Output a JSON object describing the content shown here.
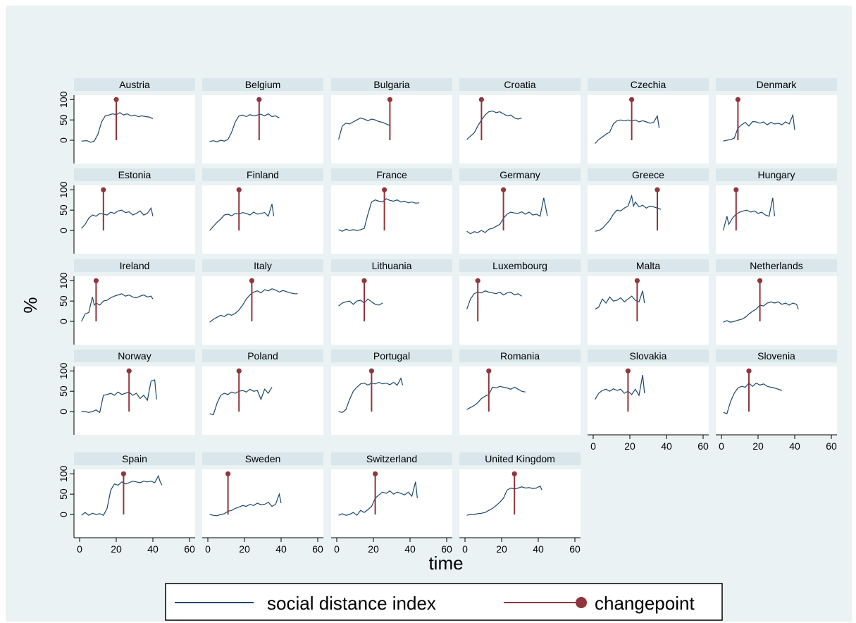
{
  "chart_data": {
    "type": "line",
    "ylabel": "%",
    "xlabel": "time",
    "xlim": [
      0,
      60
    ],
    "ylim": [
      0,
      100
    ],
    "xticks": [
      "0",
      "20",
      "40",
      "60"
    ],
    "yticks": [
      "0",
      "50",
      "100"
    ],
    "grid": false,
    "legend": {
      "position": "bottom",
      "items": [
        {
          "label": "social distance index",
          "color": "#1a476f",
          "marker": "line"
        },
        {
          "label": "changepoint",
          "color": "#90353b",
          "marker": "line-dot"
        }
      ]
    },
    "panels": [
      {
        "name": "Austria",
        "changepoint": 20,
        "x": [
          1,
          4,
          6,
          8,
          10,
          12,
          14,
          16,
          18,
          20,
          22,
          24,
          26,
          28,
          30,
          32,
          34,
          36,
          38,
          40
        ],
        "y": [
          -2,
          -1,
          -5,
          -2,
          15,
          45,
          60,
          62,
          65,
          63,
          68,
          62,
          65,
          60,
          62,
          58,
          60,
          58,
          57,
          53
        ]
      },
      {
        "name": "Belgium",
        "changepoint": 28,
        "x": [
          1,
          3,
          5,
          7,
          9,
          11,
          13,
          15,
          17,
          19,
          21,
          23,
          25,
          27,
          29,
          31,
          33,
          35,
          37,
          39
        ],
        "y": [
          -3,
          -1,
          -4,
          0,
          -2,
          2,
          20,
          45,
          60,
          62,
          58,
          63,
          60,
          62,
          64,
          60,
          65,
          58,
          60,
          55
        ]
      },
      {
        "name": "Bulgaria",
        "changepoint": 29,
        "x": [
          1,
          3,
          5,
          7,
          9,
          11,
          13,
          15,
          17,
          19,
          21,
          23,
          25,
          27,
          29
        ],
        "y": [
          2,
          35,
          42,
          40,
          45,
          50,
          55,
          52,
          48,
          52,
          50,
          46,
          44,
          40,
          36
        ]
      },
      {
        "name": "Croatia",
        "changepoint": 9,
        "x": [
          1,
          3,
          5,
          7,
          9,
          11,
          13,
          15,
          17,
          19,
          21,
          23,
          25,
          27,
          29,
          31
        ],
        "y": [
          2,
          10,
          18,
          35,
          50,
          62,
          70,
          72,
          68,
          70,
          65,
          60,
          62,
          55,
          52,
          55
        ]
      },
      {
        "name": "Czechia",
        "changepoint": 21,
        "x": [
          1,
          3,
          5,
          7,
          9,
          11,
          13,
          15,
          17,
          19,
          21,
          23,
          25,
          27,
          29,
          31,
          33,
          35,
          36
        ],
        "y": [
          -8,
          2,
          8,
          15,
          20,
          40,
          48,
          50,
          48,
          50,
          47,
          50,
          45,
          48,
          45,
          42,
          44,
          60,
          30
        ]
      },
      {
        "name": "Denmark",
        "changepoint": 9,
        "x": [
          1,
          3,
          5,
          7,
          9,
          11,
          13,
          15,
          17,
          19,
          21,
          23,
          25,
          27,
          29,
          31,
          33,
          35,
          37,
          39,
          40
        ],
        "y": [
          -2,
          0,
          2,
          5,
          30,
          38,
          44,
          35,
          46,
          45,
          42,
          45,
          38,
          44,
          40,
          42,
          38,
          45,
          40,
          62,
          25
        ]
      },
      {
        "name": "Estonia",
        "changepoint": 13,
        "x": [
          1,
          3,
          5,
          7,
          9,
          11,
          13,
          15,
          17,
          19,
          21,
          23,
          25,
          27,
          29,
          31,
          33,
          35,
          37,
          39,
          40
        ],
        "y": [
          5,
          15,
          30,
          38,
          35,
          42,
          40,
          38,
          45,
          42,
          48,
          50,
          44,
          46,
          38,
          42,
          48,
          38,
          42,
          55,
          35
        ]
      },
      {
        "name": "Finland",
        "changepoint": 17,
        "x": [
          1,
          3,
          5,
          7,
          9,
          11,
          13,
          15,
          17,
          19,
          21,
          23,
          25,
          27,
          29,
          31,
          33,
          35,
          36
        ],
        "y": [
          0,
          10,
          20,
          28,
          38,
          40,
          36,
          42,
          40,
          44,
          42,
          38,
          45,
          40,
          42,
          44,
          35,
          65,
          35
        ]
      },
      {
        "name": "France",
        "changepoint": 26,
        "x": [
          1,
          3,
          5,
          7,
          9,
          11,
          13,
          15,
          17,
          19,
          21,
          23,
          25,
          27,
          29,
          31,
          33,
          35,
          37,
          39,
          41,
          43,
          45
        ],
        "y": [
          2,
          -2,
          3,
          0,
          2,
          0,
          2,
          5,
          40,
          70,
          75,
          72,
          70,
          78,
          74,
          72,
          75,
          70,
          72,
          68,
          70,
          67,
          68
        ]
      },
      {
        "name": "Germany",
        "changepoint": 21,
        "x": [
          1,
          3,
          5,
          7,
          9,
          11,
          13,
          15,
          17,
          19,
          21,
          23,
          25,
          27,
          29,
          31,
          33,
          35,
          37,
          39,
          41,
          43,
          45
        ],
        "y": [
          -2,
          -8,
          -3,
          -5,
          0,
          -5,
          3,
          5,
          10,
          15,
          30,
          40,
          45,
          43,
          42,
          46,
          40,
          45,
          38,
          40,
          35,
          80,
          35
        ]
      },
      {
        "name": "Greece",
        "changepoint": 35,
        "x": [
          1,
          3,
          5,
          7,
          9,
          11,
          13,
          15,
          17,
          19,
          21,
          22,
          23,
          25,
          27,
          29,
          31,
          33,
          35,
          37
        ],
        "y": [
          -2,
          0,
          5,
          15,
          25,
          40,
          50,
          48,
          55,
          60,
          85,
          60,
          70,
          58,
          62,
          55,
          60,
          58,
          55,
          52
        ]
      },
      {
        "name": "Hungary",
        "changepoint": 8,
        "x": [
          1,
          3,
          4,
          6,
          8,
          10,
          12,
          14,
          16,
          18,
          20,
          22,
          24,
          26,
          28,
          29
        ],
        "y": [
          0,
          35,
          15,
          30,
          40,
          45,
          48,
          50,
          45,
          48,
          42,
          45,
          38,
          35,
          80,
          35
        ]
      },
      {
        "name": "Ireland",
        "changepoint": 9,
        "x": [
          1,
          3,
          5,
          7,
          8,
          9,
          11,
          13,
          15,
          17,
          19,
          21,
          23,
          25,
          27,
          29,
          31,
          33,
          35,
          37,
          39,
          40
        ],
        "y": [
          0,
          18,
          22,
          60,
          40,
          45,
          40,
          50,
          52,
          58,
          62,
          65,
          68,
          62,
          65,
          60,
          58,
          62,
          65,
          60,
          62,
          55
        ]
      },
      {
        "name": "Italy",
        "changepoint": 24,
        "x": [
          1,
          3,
          5,
          7,
          9,
          11,
          13,
          15,
          17,
          19,
          21,
          23,
          25,
          27,
          29,
          31,
          33,
          35,
          37,
          39,
          41,
          43,
          45,
          47,
          49
        ],
        "y": [
          -2,
          5,
          10,
          15,
          12,
          18,
          15,
          20,
          28,
          40,
          55,
          65,
          72,
          75,
          70,
          78,
          75,
          80,
          77,
          72,
          76,
          73,
          70,
          68,
          68
        ]
      },
      {
        "name": "Lithuania",
        "changepoint": 15,
        "x": [
          1,
          3,
          5,
          7,
          9,
          11,
          13,
          15,
          17,
          19,
          21,
          23,
          25
        ],
        "y": [
          38,
          45,
          48,
          50,
          42,
          50,
          52,
          45,
          55,
          48,
          42,
          40,
          45
        ]
      },
      {
        "name": "Luxembourg",
        "changepoint": 7,
        "x": [
          1,
          3,
          5,
          7,
          9,
          11,
          13,
          15,
          17,
          19,
          21,
          23,
          25,
          27,
          29,
          31
        ],
        "y": [
          30,
          55,
          68,
          72,
          70,
          75,
          72,
          70,
          68,
          72,
          65,
          70,
          72,
          65,
          68,
          62
        ]
      },
      {
        "name": "Malta",
        "changepoint": 24,
        "x": [
          1,
          3,
          5,
          7,
          9,
          11,
          13,
          15,
          17,
          19,
          21,
          23,
          25,
          27,
          28
        ],
        "y": [
          30,
          35,
          55,
          45,
          60,
          50,
          52,
          58,
          48,
          55,
          62,
          52,
          48,
          75,
          45
        ]
      },
      {
        "name": "Netherlands",
        "changepoint": 21,
        "x": [
          1,
          3,
          5,
          7,
          9,
          11,
          13,
          15,
          17,
          19,
          21,
          23,
          25,
          27,
          29,
          31,
          33,
          35,
          37,
          39,
          41,
          42
        ],
        "y": [
          -2,
          2,
          -2,
          0,
          3,
          5,
          10,
          18,
          25,
          30,
          40,
          38,
          45,
          48,
          45,
          48,
          42,
          45,
          40,
          45,
          42,
          30
        ]
      },
      {
        "name": "Norway",
        "changepoint": 27,
        "x": [
          1,
          3,
          5,
          7,
          9,
          11,
          13,
          15,
          17,
          19,
          21,
          23,
          25,
          27,
          29,
          31,
          33,
          35,
          37,
          39,
          41,
          42
        ],
        "y": [
          0,
          0,
          -2,
          0,
          4,
          -2,
          40,
          42,
          45,
          40,
          48,
          42,
          45,
          48,
          40,
          45,
          32,
          40,
          28,
          75,
          78,
          30
        ]
      },
      {
        "name": "Poland",
        "changepoint": 17,
        "x": [
          1,
          3,
          5,
          7,
          9,
          11,
          13,
          15,
          17,
          19,
          21,
          23,
          25,
          27,
          29,
          31,
          33,
          35
        ],
        "y": [
          -5,
          -8,
          20,
          40,
          45,
          42,
          48,
          45,
          50,
          52,
          48,
          55,
          50,
          52,
          30,
          55,
          45,
          60
        ]
      },
      {
        "name": "Portugal",
        "changepoint": 19,
        "x": [
          1,
          3,
          5,
          7,
          9,
          11,
          13,
          15,
          17,
          19,
          21,
          23,
          25,
          27,
          29,
          31,
          33,
          35,
          36
        ],
        "y": [
          0,
          -2,
          5,
          30,
          50,
          60,
          68,
          70,
          65,
          70,
          68,
          72,
          68,
          70,
          66,
          72,
          65,
          82,
          65
        ]
      },
      {
        "name": "Romania",
        "changepoint": 13,
        "x": [
          1,
          3,
          5,
          7,
          9,
          11,
          13,
          15,
          17,
          19,
          21,
          23,
          25,
          27,
          29,
          31,
          33
        ],
        "y": [
          5,
          10,
          15,
          22,
          32,
          38,
          42,
          60,
          58,
          62,
          60,
          58,
          55,
          60,
          55,
          50,
          48
        ]
      },
      {
        "name": "Slovakia",
        "changepoint": 19,
        "x": [
          1,
          3,
          5,
          7,
          9,
          11,
          13,
          15,
          17,
          19,
          21,
          23,
          25,
          27,
          28
        ],
        "y": [
          30,
          45,
          52,
          55,
          50,
          56,
          52,
          55,
          45,
          50,
          42,
          55,
          40,
          90,
          45
        ]
      },
      {
        "name": "Slovenia",
        "changepoint": 15,
        "x": [
          1,
          3,
          5,
          7,
          9,
          11,
          13,
          15,
          17,
          19,
          21,
          23,
          25,
          27,
          29,
          31,
          33
        ],
        "y": [
          -2,
          -5,
          25,
          45,
          58,
          62,
          60,
          70,
          62,
          70,
          65,
          68,
          62,
          60,
          58,
          55,
          52
        ]
      },
      {
        "name": "Spain",
        "changepoint": 24,
        "x": [
          1,
          3,
          5,
          7,
          9,
          11,
          13,
          15,
          17,
          19,
          21,
          23,
          25,
          27,
          29,
          31,
          33,
          35,
          37,
          39,
          41,
          43,
          44,
          45
        ],
        "y": [
          -2,
          5,
          -2,
          3,
          0,
          2,
          -2,
          15,
          60,
          75,
          72,
          80,
          75,
          78,
          82,
          80,
          78,
          82,
          80,
          82,
          78,
          95,
          80,
          72
        ]
      },
      {
        "name": "Sweden",
        "changepoint": 11,
        "x": [
          1,
          3,
          5,
          7,
          9,
          11,
          13,
          15,
          17,
          19,
          21,
          23,
          25,
          27,
          29,
          31,
          33,
          35,
          37,
          39,
          40
        ],
        "y": [
          0,
          -2,
          -3,
          0,
          2,
          8,
          10,
          15,
          18,
          22,
          20,
          25,
          22,
          28,
          24,
          25,
          30,
          20,
          25,
          50,
          28
        ]
      },
      {
        "name": "Switzerland",
        "changepoint": 21,
        "x": [
          1,
          3,
          5,
          7,
          9,
          11,
          13,
          15,
          17,
          19,
          21,
          23,
          25,
          27,
          29,
          31,
          33,
          35,
          37,
          39,
          41,
          43,
          44
        ],
        "y": [
          -2,
          2,
          -2,
          0,
          5,
          -2,
          10,
          5,
          12,
          20,
          40,
          48,
          55,
          52,
          58,
          50,
          55,
          52,
          48,
          55,
          45,
          80,
          40
        ]
      },
      {
        "name": "United Kingdom",
        "changepoint": 27,
        "x": [
          1,
          3,
          5,
          7,
          9,
          11,
          13,
          15,
          17,
          19,
          21,
          23,
          25,
          27,
          29,
          31,
          33,
          35,
          37,
          39,
          41,
          42
        ],
        "y": [
          -2,
          0,
          0,
          2,
          3,
          5,
          10,
          15,
          22,
          30,
          40,
          60,
          65,
          63,
          65,
          68,
          65,
          66,
          64,
          65,
          70,
          60
        ]
      }
    ]
  }
}
